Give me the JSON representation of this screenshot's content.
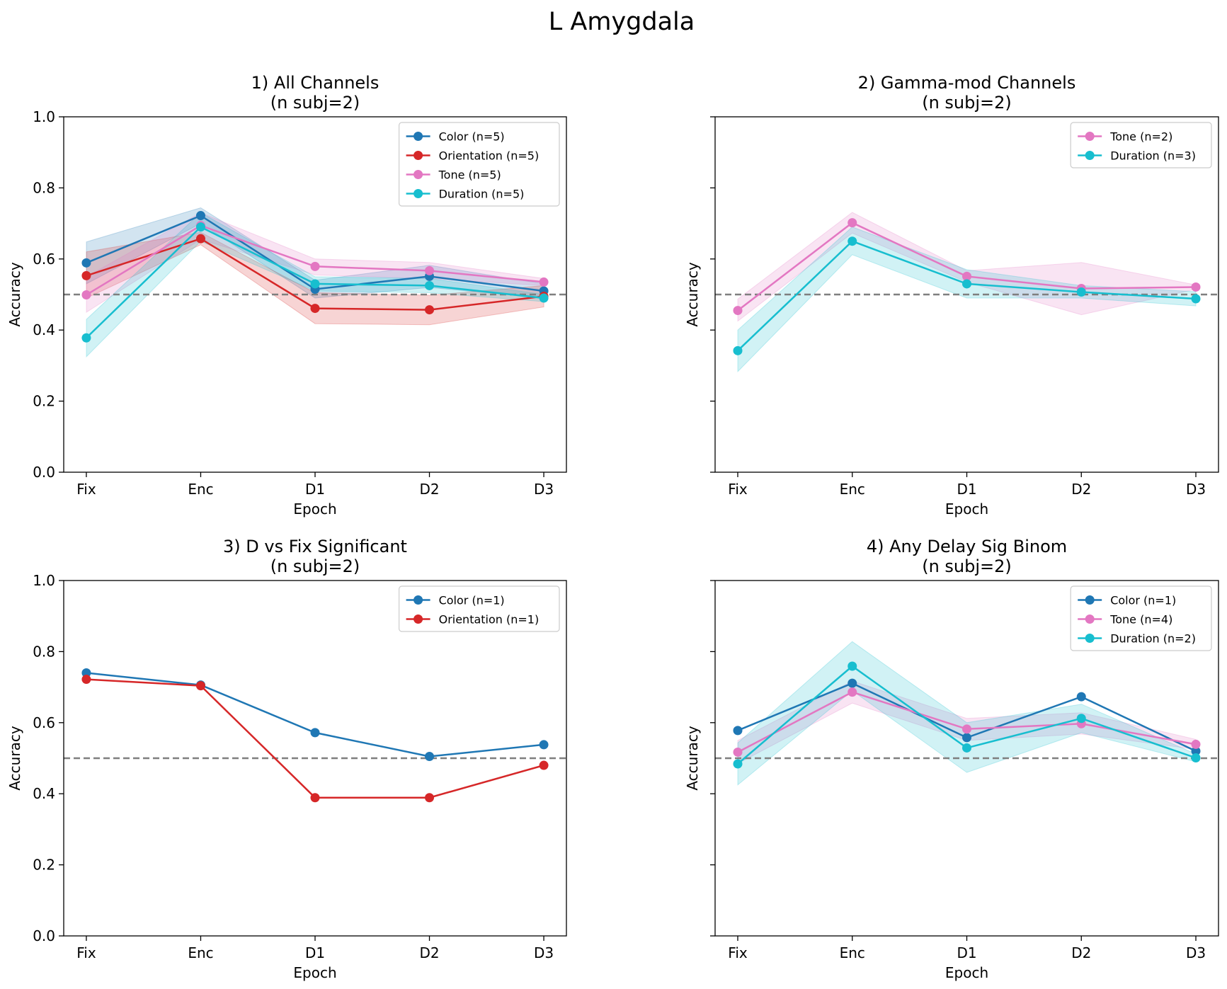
{
  "figure": {
    "suptitle": "L Amygdala"
  },
  "chart_data": [
    {
      "type": "line",
      "title": "1) All Channels",
      "subtitle": "(n subj=2)",
      "xlabel": "Epoch",
      "ylabel": "Accuracy",
      "categories": [
        "Fix",
        "Enc",
        "D1",
        "D2",
        "D3"
      ],
      "ylim": [
        0.0,
        1.0
      ],
      "yticks": [
        "0.0",
        "0.2",
        "0.4",
        "0.6",
        "0.8",
        "1.0"
      ],
      "show_ytick_labels": true,
      "chance_line": 0.5,
      "grid": false,
      "legend_position": "top-right",
      "series": [
        {
          "name": "Color (n=5)",
          "color": "#1f77b4",
          "values": [
            0.589,
            0.722,
            0.515,
            0.551,
            0.51
          ],
          "lower": [
            0.53,
            0.7,
            0.49,
            0.52,
            0.49
          ],
          "upper": [
            0.648,
            0.744,
            0.54,
            0.582,
            0.53
          ]
        },
        {
          "name": "Orientation (n=5)",
          "color": "#d62728",
          "values": [
            0.553,
            0.657,
            0.461,
            0.457,
            0.495
          ],
          "lower": [
            0.49,
            0.64,
            0.418,
            0.415,
            0.465
          ],
          "upper": [
            0.62,
            0.675,
            0.505,
            0.498,
            0.525
          ]
        },
        {
          "name": "Tone (n=5)",
          "color": "#e377c2",
          "values": [
            0.499,
            0.694,
            0.579,
            0.567,
            0.535
          ],
          "lower": [
            0.45,
            0.655,
            0.555,
            0.545,
            0.525
          ],
          "upper": [
            0.55,
            0.73,
            0.6,
            0.59,
            0.545
          ]
        },
        {
          "name": "Duration (n=5)",
          "color": "#17becf",
          "values": [
            0.378,
            0.69,
            0.53,
            0.525,
            0.49
          ],
          "lower": [
            0.325,
            0.65,
            0.51,
            0.505,
            0.48
          ],
          "upper": [
            0.43,
            0.73,
            0.55,
            0.545,
            0.5
          ]
        }
      ]
    },
    {
      "type": "line",
      "title": "2) Gamma-mod Channels",
      "subtitle": "(n subj=2)",
      "xlabel": "Epoch",
      "ylabel": "Accuracy",
      "categories": [
        "Fix",
        "Enc",
        "D1",
        "D2",
        "D3"
      ],
      "ylim": [
        0.0,
        1.0
      ],
      "yticks": [
        "0.0",
        "0.2",
        "0.4",
        "0.6",
        "0.8",
        "1.0"
      ],
      "show_ytick_labels": false,
      "chance_line": 0.5,
      "grid": false,
      "legend_position": "top-right",
      "series": [
        {
          "name": "Tone (n=2)",
          "color": "#e377c2",
          "values": [
            0.455,
            0.702,
            0.551,
            0.517,
            0.521
          ],
          "lower": [
            0.425,
            0.673,
            0.535,
            0.443,
            0.515
          ],
          "upper": [
            0.487,
            0.731,
            0.567,
            0.59,
            0.527
          ]
        },
        {
          "name": "Duration (n=3)",
          "color": "#17becf",
          "values": [
            0.342,
            0.65,
            0.53,
            0.507,
            0.488
          ],
          "lower": [
            0.283,
            0.612,
            0.49,
            0.49,
            0.468
          ],
          "upper": [
            0.4,
            0.69,
            0.57,
            0.525,
            0.508
          ]
        }
      ]
    },
    {
      "type": "line",
      "title": "3) D vs Fix Significant",
      "subtitle": "(n subj=2)",
      "xlabel": "Epoch",
      "ylabel": "Accuracy",
      "categories": [
        "Fix",
        "Enc",
        "D1",
        "D2",
        "D3"
      ],
      "ylim": [
        0.0,
        1.0
      ],
      "yticks": [
        "0.0",
        "0.2",
        "0.4",
        "0.6",
        "0.8",
        "1.0"
      ],
      "show_ytick_labels": true,
      "chance_line": 0.5,
      "grid": false,
      "legend_position": "top-right",
      "series": [
        {
          "name": "Color (n=1)",
          "color": "#1f77b4",
          "values": [
            0.74,
            0.706,
            0.572,
            0.505,
            0.538
          ]
        },
        {
          "name": "Orientation (n=1)",
          "color": "#d62728",
          "values": [
            0.722,
            0.704,
            0.389,
            0.389,
            0.48
          ]
        }
      ]
    },
    {
      "type": "line",
      "title": "4) Any Delay Sig Binom",
      "subtitle": "(n subj=2)",
      "xlabel": "Epoch",
      "ylabel": "Accuracy",
      "categories": [
        "Fix",
        "Enc",
        "D1",
        "D2",
        "D3"
      ],
      "ylim": [
        0.0,
        1.0
      ],
      "yticks": [
        "0.0",
        "0.2",
        "0.4",
        "0.6",
        "0.8",
        "1.0"
      ],
      "show_ytick_labels": false,
      "chance_line": 0.5,
      "grid": false,
      "legend_position": "top-right",
      "series": [
        {
          "name": "Color (n=1)",
          "color": "#1f77b4",
          "values": [
            0.578,
            0.711,
            0.558,
            0.673,
            0.52
          ]
        },
        {
          "name": "Tone (n=4)",
          "color": "#e377c2",
          "values": [
            0.517,
            0.686,
            0.582,
            0.597,
            0.539
          ],
          "lower": [
            0.485,
            0.655,
            0.55,
            0.568,
            0.525
          ],
          "upper": [
            0.55,
            0.717,
            0.612,
            0.628,
            0.553
          ]
        },
        {
          "name": "Duration (n=2)",
          "color": "#17becf",
          "values": [
            0.484,
            0.759,
            0.529,
            0.612,
            0.501
          ],
          "lower": [
            0.425,
            0.69,
            0.46,
            0.572,
            0.49
          ],
          "upper": [
            0.543,
            0.828,
            0.6,
            0.652,
            0.512
          ]
        }
      ]
    }
  ]
}
